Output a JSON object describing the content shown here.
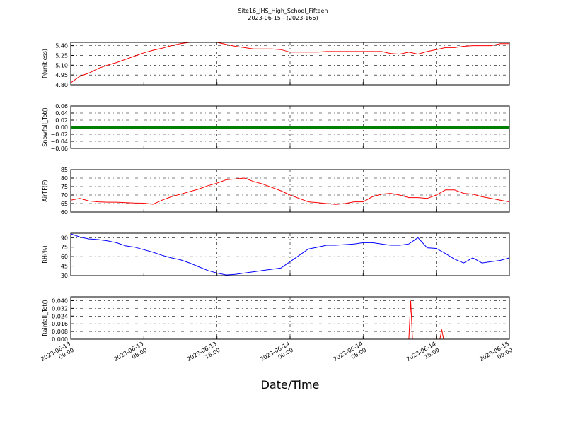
{
  "chart_data": {
    "type": "line",
    "title": "Site16_JHS_High_School_Fifteen",
    "subtitle": "2023-06-15 - (2023-166)",
    "xlabel": "Date/Time",
    "xlim": [
      "2023-06-13 00:00",
      "2023-06-15 00:00"
    ],
    "x_ticks": [
      "2023-06-13\n00:00",
      "2023-06-13\n08:00",
      "2023-06-13\n16:00",
      "2023-06-14\n00:00",
      "2023-06-14\n08:00",
      "2023-06-14\n16:00",
      "2023-06-15\n00:00"
    ],
    "grid": true,
    "panels": [
      {
        "ylabel": "P(unitless)",
        "color": "#ff0000",
        "ylim": [
          4.8,
          5.45
        ],
        "yticks": [
          "4.80",
          "4.95",
          "5.10",
          "5.25",
          "5.40"
        ],
        "ytick_values": [
          4.8,
          4.95,
          5.1,
          5.25,
          5.4
        ],
        "series": {
          "x": [
            0,
            1,
            2,
            3,
            4,
            5,
            6,
            7,
            8,
            9,
            10,
            11,
            12,
            13,
            14,
            15,
            16,
            17,
            18,
            19,
            20,
            21,
            22,
            23,
            24,
            25,
            26,
            27,
            28,
            29,
            30,
            31,
            32,
            33,
            34,
            35,
            36,
            37,
            38,
            39,
            40,
            41,
            42,
            43,
            44,
            45,
            46,
            47,
            48
          ],
          "y": [
            4.83,
            4.93,
            4.98,
            5.05,
            5.1,
            5.14,
            5.19,
            5.24,
            5.29,
            5.33,
            5.36,
            5.4,
            5.43,
            5.45,
            5.46,
            5.46,
            5.45,
            5.42,
            5.39,
            5.37,
            5.35,
            5.35,
            5.35,
            5.34,
            5.3,
            5.3,
            5.3,
            5.3,
            5.31,
            5.31,
            5.31,
            5.31,
            5.31,
            5.31,
            5.31,
            5.28,
            5.27,
            5.3,
            5.27,
            5.31,
            5.34,
            5.37,
            5.37,
            5.39,
            5.4,
            5.4,
            5.4,
            5.43,
            5.43
          ]
        }
      },
      {
        "ylabel": "Snowfall_Tot()",
        "color": "#008000",
        "ylim": [
          -0.06,
          0.06
        ],
        "yticks": [
          "−0.06",
          "−0.04",
          "−0.02",
          "0.00",
          "0.02",
          "0.04",
          "0.06"
        ],
        "ytick_values": [
          -0.06,
          -0.04,
          -0.02,
          0.0,
          0.02,
          0.04,
          0.06
        ],
        "series": {
          "x": [
            0,
            48
          ],
          "y": [
            0,
            0
          ]
        }
      },
      {
        "ylabel": "AirTF(F)",
        "color": "#ff0000",
        "ylim": [
          60,
          85
        ],
        "yticks": [
          "60",
          "65",
          "70",
          "75",
          "80",
          "85"
        ],
        "ytick_values": [
          60,
          65,
          70,
          75,
          80,
          85
        ],
        "series": {
          "x": [
            0,
            1,
            2,
            3,
            4,
            5,
            6,
            7,
            8,
            9,
            10,
            11,
            12,
            13,
            14,
            15,
            16,
            17,
            18,
            19,
            20,
            21,
            22,
            23,
            24,
            25,
            26,
            27,
            28,
            29,
            30,
            31,
            32,
            33,
            34,
            35,
            36,
            37,
            38,
            39,
            40,
            41,
            42,
            43,
            44,
            45,
            46,
            47,
            48
          ],
          "y": [
            67,
            68,
            66.5,
            66,
            65.8,
            65.8,
            65.5,
            65.3,
            65.2,
            64.6,
            67,
            69,
            70.5,
            72,
            73.5,
            75.5,
            77,
            79,
            79.5,
            80,
            78,
            76.5,
            74.5,
            72.5,
            70,
            68,
            66,
            65.5,
            65,
            64.5,
            65,
            66,
            66,
            69,
            70.5,
            71,
            70,
            68.5,
            68.5,
            68,
            70,
            73,
            73,
            71,
            70.5,
            69,
            68,
            67,
            66
          ]
        }
      },
      {
        "ylabel": "RH(%)",
        "color": "#0000ff",
        "ylim": [
          30,
          97
        ],
        "yticks": [
          "30",
          "45",
          "60",
          "75",
          "90"
        ],
        "ytick_values": [
          30,
          45,
          60,
          75,
          90
        ],
        "series": {
          "x": [
            0,
            1,
            2,
            3,
            4,
            5,
            6,
            7,
            8,
            9,
            10,
            11,
            12,
            13,
            14,
            15,
            16,
            17,
            18,
            19,
            20,
            21,
            22,
            23,
            24,
            25,
            26,
            27,
            28,
            29,
            30,
            31,
            32,
            33,
            34,
            35,
            36,
            37,
            38,
            39,
            40,
            41,
            42,
            43,
            44,
            45,
            46,
            47,
            48
          ],
          "y": [
            96,
            91,
            88,
            87,
            85,
            82,
            77,
            75,
            71,
            67,
            62,
            58,
            55,
            50,
            44,
            38,
            34,
            31,
            32,
            34,
            36,
            38,
            40,
            42,
            52,
            62,
            72,
            75,
            78,
            78,
            79,
            80,
            82,
            82,
            80,
            78,
            78,
            80,
            90,
            74,
            73,
            65,
            56,
            50,
            58,
            50,
            52,
            54,
            58
          ]
        }
      },
      {
        "ylabel": "Rainfall_Tot()",
        "color": "#ff0000",
        "ylim": [
          0,
          0.044
        ],
        "yticks": [
          "0.000",
          "0.008",
          "0.016",
          "0.024",
          "0.032",
          "0.040"
        ],
        "ytick_values": [
          0,
          0.008,
          0.016,
          0.024,
          0.032,
          0.04
        ],
        "series": {
          "x": [
            0,
            37.0,
            37.2,
            37.4,
            40.4,
            40.6,
            40.8,
            48
          ],
          "y": [
            0,
            0,
            0.04,
            0,
            0,
            0.01,
            0,
            0
          ]
        }
      }
    ]
  }
}
